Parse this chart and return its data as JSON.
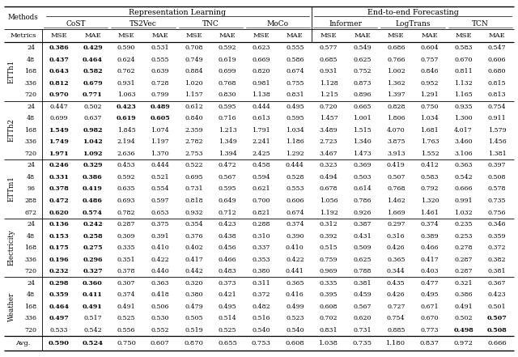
{
  "title_rep": "Representation Learning",
  "title_end": "End-to-end Forecasting",
  "methods": [
    "CoST",
    "TS2Vec",
    "TNC",
    "MoCo",
    "Informer",
    "LogTrans",
    "TCN"
  ],
  "datasets": [
    "ETTh1",
    "ETTh2",
    "ETTm1",
    "Electricity",
    "Weather"
  ],
  "dataset_horizons": {
    "ETTh1": [
      24,
      48,
      168,
      336,
      720
    ],
    "ETTh2": [
      24,
      48,
      168,
      336,
      720
    ],
    "ETTm1": [
      24,
      48,
      96,
      288,
      672
    ],
    "Electricity": [
      24,
      48,
      168,
      336,
      720
    ],
    "Weather": [
      24,
      48,
      168,
      336,
      720
    ]
  },
  "data": {
    "ETTh1": [
      [
        0.386,
        0.429,
        0.59,
        0.531,
        0.708,
        0.592,
        0.623,
        0.555,
        0.577,
        0.549,
        0.686,
        0.604,
        0.583,
        0.547
      ],
      [
        0.437,
        0.464,
        0.624,
        0.555,
        0.749,
        0.619,
        0.669,
        0.586,
        0.685,
        0.625,
        0.766,
        0.757,
        0.67,
        0.606
      ],
      [
        0.643,
        0.582,
        0.762,
        0.639,
        0.884,
        0.699,
        0.82,
        0.674,
        0.931,
        0.752,
        1.002,
        0.846,
        0.811,
        0.68
      ],
      [
        0.812,
        0.679,
        0.931,
        0.728,
        1.02,
        0.768,
        0.981,
        0.755,
        1.128,
        0.873,
        1.362,
        0.952,
        1.132,
        0.815
      ],
      [
        0.97,
        0.771,
        1.063,
        0.799,
        1.157,
        0.83,
        1.138,
        0.831,
        1.215,
        0.896,
        1.397,
        1.291,
        1.165,
        0.813
      ]
    ],
    "ETTh2": [
      [
        0.447,
        0.502,
        0.423,
        0.489,
        0.612,
        0.595,
        0.444,
        0.495,
        0.72,
        0.665,
        0.828,
        0.75,
        0.935,
        0.754
      ],
      [
        0.699,
        0.637,
        0.619,
        0.605,
        0.84,
        0.716,
        0.613,
        0.595,
        1.457,
        1.001,
        1.806,
        1.034,
        1.3,
        0.911
      ],
      [
        1.549,
        0.982,
        1.845,
        1.074,
        2.359,
        1.213,
        1.791,
        1.034,
        3.489,
        1.515,
        4.07,
        1.681,
        4.017,
        1.579
      ],
      [
        1.749,
        1.042,
        2.194,
        1.197,
        2.782,
        1.349,
        2.241,
        1.186,
        2.723,
        1.34,
        3.875,
        1.763,
        3.46,
        1.456
      ],
      [
        1.971,
        1.092,
        2.636,
        1.37,
        2.753,
        1.394,
        2.425,
        1.292,
        3.467,
        1.473,
        3.913,
        1.552,
        3.106,
        1.381
      ]
    ],
    "ETTm1": [
      [
        0.246,
        0.329,
        0.453,
        0.444,
        0.522,
        0.472,
        0.458,
        0.444,
        0.323,
        0.369,
        0.419,
        0.412,
        0.363,
        0.397
      ],
      [
        0.331,
        0.386,
        0.592,
        0.521,
        0.695,
        0.567,
        0.594,
        0.528,
        0.494,
        0.503,
        0.507,
        0.583,
        0.542,
        0.508
      ],
      [
        0.378,
        0.419,
        0.635,
        0.554,
        0.731,
        0.595,
        0.621,
        0.553,
        0.678,
        0.614,
        0.768,
        0.792,
        0.666,
        0.578
      ],
      [
        0.472,
        0.486,
        0.693,
        0.597,
        0.818,
        0.649,
        0.7,
        0.606,
        1.056,
        0.786,
        1.462,
        1.32,
        0.991,
        0.735
      ],
      [
        0.62,
        0.574,
        0.782,
        0.653,
        0.932,
        0.712,
        0.821,
        0.674,
        1.192,
        0.926,
        1.669,
        1.461,
        1.032,
        0.756
      ]
    ],
    "Electricity": [
      [
        0.136,
        0.242,
        0.287,
        0.375,
        0.354,
        0.423,
        0.288,
        0.374,
        0.312,
        0.387,
        0.297,
        0.374,
        0.235,
        0.346
      ],
      [
        0.153,
        0.258,
        0.309,
        0.391,
        0.376,
        0.438,
        0.31,
        0.39,
        0.392,
        0.431,
        0.316,
        0.389,
        0.253,
        0.359
      ],
      [
        0.175,
        0.275,
        0.335,
        0.41,
        0.402,
        0.456,
        0.337,
        0.41,
        0.515,
        0.509,
        0.426,
        0.466,
        0.278,
        0.372
      ],
      [
        0.196,
        0.296,
        0.351,
        0.422,
        0.417,
        0.466,
        0.353,
        0.422,
        0.759,
        0.625,
        0.365,
        0.417,
        0.287,
        0.382
      ],
      [
        0.232,
        0.327,
        0.378,
        0.44,
        0.442,
        0.483,
        0.38,
        0.441,
        0.969,
        0.788,
        0.344,
        0.403,
        0.287,
        0.381
      ]
    ],
    "Weather": [
      [
        0.298,
        0.36,
        0.307,
        0.363,
        0.32,
        0.373,
        0.311,
        0.365,
        0.335,
        0.381,
        0.435,
        0.477,
        0.321,
        0.367
      ],
      [
        0.359,
        0.411,
        0.374,
        0.418,
        0.38,
        0.421,
        0.372,
        0.416,
        0.395,
        0.459,
        0.426,
        0.495,
        0.386,
        0.423
      ],
      [
        0.464,
        0.491,
        0.491,
        0.506,
        0.479,
        0.495,
        0.482,
        0.499,
        0.608,
        0.567,
        0.727,
        0.671,
        0.491,
        0.501
      ],
      [
        0.497,
        0.517,
        0.525,
        0.53,
        0.505,
        0.514,
        0.516,
        0.523,
        0.702,
        0.62,
        0.754,
        0.67,
        0.502,
        0.507
      ],
      [
        0.533,
        0.542,
        0.556,
        0.552,
        0.519,
        0.525,
        0.54,
        0.54,
        0.831,
        0.731,
        0.885,
        0.773,
        0.498,
        0.508
      ]
    ]
  },
  "bold": {
    "ETTh1": [
      [
        true,
        true,
        false,
        false,
        false,
        false,
        false,
        false,
        false,
        false,
        false,
        false,
        false,
        false
      ],
      [
        true,
        true,
        false,
        false,
        false,
        false,
        false,
        false,
        false,
        false,
        false,
        false,
        false,
        false
      ],
      [
        true,
        true,
        false,
        false,
        false,
        false,
        false,
        false,
        false,
        false,
        false,
        false,
        false,
        false
      ],
      [
        true,
        true,
        false,
        false,
        false,
        false,
        false,
        false,
        false,
        false,
        false,
        false,
        false,
        false
      ],
      [
        true,
        true,
        false,
        false,
        false,
        false,
        false,
        false,
        false,
        false,
        false,
        false,
        false,
        false
      ]
    ],
    "ETTh2": [
      [
        false,
        false,
        true,
        true,
        false,
        false,
        false,
        false,
        false,
        false,
        false,
        false,
        false,
        false
      ],
      [
        false,
        false,
        true,
        true,
        false,
        false,
        false,
        false,
        false,
        false,
        false,
        false,
        false,
        false
      ],
      [
        true,
        true,
        false,
        false,
        false,
        false,
        false,
        false,
        false,
        false,
        false,
        false,
        false,
        false
      ],
      [
        true,
        true,
        false,
        false,
        false,
        false,
        false,
        false,
        false,
        false,
        false,
        false,
        false,
        false
      ],
      [
        true,
        true,
        false,
        false,
        false,
        false,
        false,
        false,
        false,
        false,
        false,
        false,
        false,
        false
      ]
    ],
    "ETTm1": [
      [
        true,
        true,
        false,
        false,
        false,
        false,
        false,
        false,
        false,
        false,
        false,
        false,
        false,
        false
      ],
      [
        true,
        true,
        false,
        false,
        false,
        false,
        false,
        false,
        false,
        false,
        false,
        false,
        false,
        false
      ],
      [
        true,
        true,
        false,
        false,
        false,
        false,
        false,
        false,
        false,
        false,
        false,
        false,
        false,
        false
      ],
      [
        true,
        true,
        false,
        false,
        false,
        false,
        false,
        false,
        false,
        false,
        false,
        false,
        false,
        false
      ],
      [
        true,
        true,
        false,
        false,
        false,
        false,
        false,
        false,
        false,
        false,
        false,
        false,
        false,
        false
      ]
    ],
    "Electricity": [
      [
        true,
        true,
        false,
        false,
        false,
        false,
        false,
        false,
        false,
        false,
        false,
        false,
        false,
        false
      ],
      [
        true,
        true,
        false,
        false,
        false,
        false,
        false,
        false,
        false,
        false,
        false,
        false,
        false,
        false
      ],
      [
        true,
        true,
        false,
        false,
        false,
        false,
        false,
        false,
        false,
        false,
        false,
        false,
        false,
        false
      ],
      [
        true,
        true,
        false,
        false,
        false,
        false,
        false,
        false,
        false,
        false,
        false,
        false,
        false,
        false
      ],
      [
        true,
        true,
        false,
        false,
        false,
        false,
        false,
        false,
        false,
        false,
        false,
        false,
        false,
        false
      ]
    ],
    "Weather": [
      [
        true,
        true,
        false,
        false,
        false,
        false,
        false,
        false,
        false,
        false,
        false,
        false,
        false,
        false
      ],
      [
        true,
        true,
        false,
        false,
        false,
        false,
        false,
        false,
        false,
        false,
        false,
        false,
        false,
        false
      ],
      [
        true,
        true,
        false,
        false,
        false,
        false,
        false,
        false,
        false,
        false,
        false,
        false,
        false,
        false
      ],
      [
        true,
        false,
        false,
        false,
        false,
        false,
        false,
        false,
        false,
        false,
        false,
        false,
        false,
        true
      ],
      [
        false,
        false,
        false,
        false,
        false,
        false,
        false,
        false,
        false,
        false,
        false,
        false,
        true,
        true
      ]
    ]
  },
  "avg_row": [
    0.59,
    0.524,
    0.75,
    0.607,
    0.87,
    0.655,
    0.753,
    0.608,
    1.038,
    0.735,
    1.18,
    0.837,
    0.972,
    0.666
  ],
  "avg_bold": [
    true,
    true,
    false,
    false,
    false,
    false,
    false,
    false,
    false,
    false,
    false,
    false,
    false,
    false
  ],
  "bg_color": "#ffffff"
}
